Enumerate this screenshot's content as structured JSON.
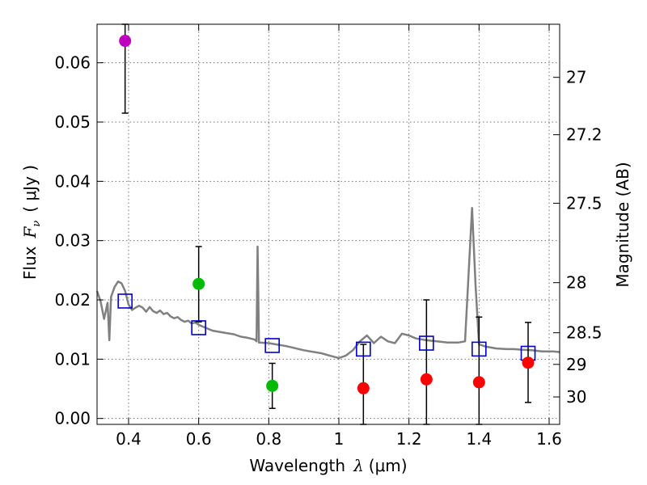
{
  "chart_data": {
    "type": "scatter",
    "title": "",
    "xlabel": "Wavelength",
    "xlabel_symbol": "λ",
    "xlabel_unit": "(μm)",
    "ylabel": "Flux",
    "ylabel_symbol": "F",
    "ylabel_subscript": "ν",
    "ylabel_unit": "( μJy )",
    "y2label": "Magnitude (AB)",
    "xlim": [
      0.31,
      1.63
    ],
    "ylim": [
      -0.001,
      0.0665
    ],
    "grid": true,
    "x_ticks": [
      0.4,
      0.6,
      0.8,
      1.0,
      1.2,
      1.4,
      1.6
    ],
    "x_tick_labels": [
      "0.4",
      "0.6",
      "0.8",
      "1",
      "1.2",
      "1.4",
      "1.6"
    ],
    "y_ticks": [
      0.0,
      0.01,
      0.02,
      0.03,
      0.04,
      0.05,
      0.06
    ],
    "y_tick_labels": [
      "0.00",
      "0.01",
      "0.02",
      "0.03",
      "0.04",
      "0.05",
      "0.06"
    ],
    "y2_ticks": [
      27,
      27.2,
      27.5,
      28,
      28.5,
      29,
      30
    ],
    "y2_tick_labels": [
      "27",
      "27.2",
      "27.5",
      "28",
      "28.5",
      "29",
      "30"
    ],
    "colors": {
      "template": "#808080",
      "model_marker": "#0000cc",
      "magenta": "#bf00bf",
      "green": "#00bb00",
      "red": "#ff0000",
      "errorbar": "#000000"
    },
    "series": [
      {
        "name": "template spectrum",
        "kind": "line",
        "color": "template",
        "points": [
          [
            0.31,
            0.0215
          ],
          [
            0.32,
            0.0198
          ],
          [
            0.33,
            0.0168
          ],
          [
            0.34,
            0.0195
          ],
          [
            0.345,
            0.0132
          ],
          [
            0.35,
            0.0205
          ],
          [
            0.36,
            0.0222
          ],
          [
            0.37,
            0.0231
          ],
          [
            0.38,
            0.0228
          ],
          [
            0.39,
            0.0215
          ],
          [
            0.4,
            0.0192
          ],
          [
            0.41,
            0.0183
          ],
          [
            0.42,
            0.0187
          ],
          [
            0.43,
            0.019
          ],
          [
            0.44,
            0.0187
          ],
          [
            0.45,
            0.018
          ],
          [
            0.46,
            0.0188
          ],
          [
            0.47,
            0.0181
          ],
          [
            0.48,
            0.0178
          ],
          [
            0.49,
            0.0182
          ],
          [
            0.5,
            0.0176
          ],
          [
            0.51,
            0.0178
          ],
          [
            0.52,
            0.0172
          ],
          [
            0.53,
            0.0169
          ],
          [
            0.54,
            0.0171
          ],
          [
            0.55,
            0.0166
          ],
          [
            0.56,
            0.0163
          ],
          [
            0.57,
            0.0165
          ],
          [
            0.58,
            0.016
          ],
          [
            0.59,
            0.0162
          ],
          [
            0.6,
            0.0158
          ],
          [
            0.62,
            0.0153
          ],
          [
            0.64,
            0.0148
          ],
          [
            0.66,
            0.0146
          ],
          [
            0.68,
            0.0144
          ],
          [
            0.7,
            0.0142
          ],
          [
            0.72,
            0.0138
          ],
          [
            0.74,
            0.0136
          ],
          [
            0.76,
            0.0133
          ],
          [
            0.765,
            0.013
          ],
          [
            0.768,
            0.029
          ],
          [
            0.772,
            0.0128
          ],
          [
            0.8,
            0.0127
          ],
          [
            0.85,
            0.0122
          ],
          [
            0.9,
            0.0115
          ],
          [
            0.95,
            0.011
          ],
          [
            0.98,
            0.0105
          ],
          [
            1.0,
            0.0102
          ],
          [
            1.02,
            0.0106
          ],
          [
            1.04,
            0.0115
          ],
          [
            1.06,
            0.013
          ],
          [
            1.08,
            0.014
          ],
          [
            1.1,
            0.0127
          ],
          [
            1.12,
            0.0138
          ],
          [
            1.14,
            0.013
          ],
          [
            1.16,
            0.0127
          ],
          [
            1.18,
            0.0143
          ],
          [
            1.2,
            0.014
          ],
          [
            1.22,
            0.0135
          ],
          [
            1.25,
            0.0132
          ],
          [
            1.28,
            0.013
          ],
          [
            1.31,
            0.0128
          ],
          [
            1.34,
            0.0128
          ],
          [
            1.36,
            0.013
          ],
          [
            1.38,
            0.0355
          ],
          [
            1.39,
            0.0225
          ],
          [
            1.4,
            0.0125
          ],
          [
            1.42,
            0.0121
          ],
          [
            1.45,
            0.0118
          ],
          [
            1.48,
            0.0117
          ],
          [
            1.5,
            0.0117
          ],
          [
            1.52,
            0.0116
          ],
          [
            1.55,
            0.0115
          ],
          [
            1.58,
            0.0113
          ],
          [
            1.61,
            0.0113
          ],
          [
            1.63,
            0.0112
          ]
        ]
      },
      {
        "name": "model fluxes",
        "kind": "open-square",
        "color": "model_marker",
        "x": [
          0.39,
          0.6,
          0.81,
          1.07,
          1.25,
          1.4,
          1.54
        ],
        "y": [
          0.0198,
          0.0153,
          0.0123,
          0.0117,
          0.0127,
          0.0117,
          0.011
        ]
      },
      {
        "name": "observed fluxes",
        "kind": "filled-circle",
        "points": [
          {
            "x": 0.39,
            "y": 0.0637,
            "err_low": 0.0515,
            "err_high": 0.0665,
            "color": "magenta"
          },
          {
            "x": 0.6,
            "y": 0.0227,
            "err_low": 0.0163,
            "err_high": 0.029,
            "color": "green"
          },
          {
            "x": 0.81,
            "y": 0.0055,
            "err_low": 0.0017,
            "err_high": 0.0093,
            "color": "green"
          },
          {
            "x": 1.07,
            "y": 0.0051,
            "err_low": -0.001,
            "err_high": 0.0125,
            "color": "red"
          },
          {
            "x": 1.25,
            "y": 0.0066,
            "err_low": -0.001,
            "err_high": 0.02,
            "color": "red"
          },
          {
            "x": 1.4,
            "y": 0.0061,
            "err_low": -0.001,
            "err_high": 0.0171,
            "color": "red"
          },
          {
            "x": 1.54,
            "y": 0.0094,
            "err_low": 0.0027,
            "err_high": 0.0162,
            "color": "red"
          }
        ]
      }
    ]
  }
}
